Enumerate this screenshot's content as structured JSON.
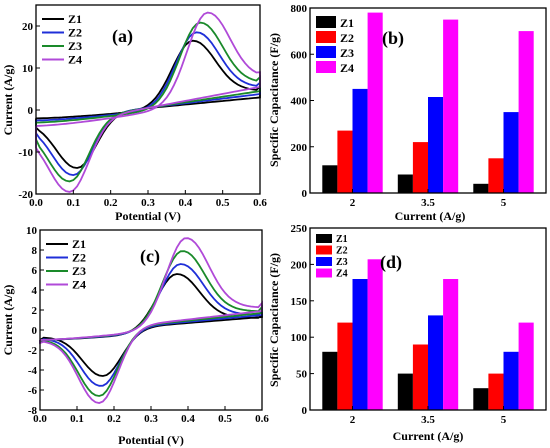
{
  "chart_data": [
    {
      "id": "a",
      "type": "line",
      "panel_label": "(a)",
      "xlabel": "Potential (V)",
      "ylabel": "Current (A/g)",
      "xlim": [
        0.0,
        0.6
      ],
      "ylim": [
        -20,
        25
      ],
      "xticks": [
        "0.0",
        "0.1",
        "0.2",
        "0.3",
        "0.4",
        "0.5",
        "0.6"
      ],
      "yticks": [
        "-20",
        "-10",
        "0",
        "10",
        "20"
      ],
      "legend": "top-left",
      "series": [
        {
          "name": "Z1",
          "color": "#000000",
          "peak_anodic": [
            0.42,
            16.5
          ],
          "peak_cathodic": [
            0.11,
            -13.8
          ],
          "start_low": -4.2,
          "start_high": -2.0,
          "end_high": 5.5,
          "end_low": 3.0
        },
        {
          "name": "Z2",
          "color": "#1f2fd8",
          "peak_anodic": [
            0.43,
            18.5
          ],
          "peak_cathodic": [
            0.1,
            -15.5
          ],
          "start_low": -5.5,
          "start_high": -2.5,
          "end_high": 6.5,
          "end_low": 3.8
        },
        {
          "name": "Z3",
          "color": "#1a8a2a",
          "peak_anodic": [
            0.44,
            20.8
          ],
          "peak_cathodic": [
            0.09,
            -17.0
          ],
          "start_low": -7.0,
          "start_high": -3.0,
          "end_high": 7.8,
          "end_low": 4.5
        },
        {
          "name": "Z4",
          "color": "#b04ad8",
          "peak_anodic": [
            0.46,
            23.2
          ],
          "peak_cathodic": [
            0.09,
            -19.5
          ],
          "start_low": -9.0,
          "start_high": -3.8,
          "end_high": 9.0,
          "end_low": 5.5
        }
      ]
    },
    {
      "id": "b",
      "type": "bar",
      "panel_label": "(b)",
      "xlabel": "Current (A/g)",
      "ylabel": "Specific Capacitance (F/g)",
      "categories": [
        "2",
        "3.5",
        "5"
      ],
      "ylim": [
        0,
        800
      ],
      "yticks": [
        "0",
        "200",
        "400",
        "600",
        "800"
      ],
      "legend": "top-left",
      "series": [
        {
          "name": "Z1",
          "color": "#000000",
          "values": [
            120,
            80,
            40
          ]
        },
        {
          "name": "Z2",
          "color": "#ff0000",
          "values": [
            270,
            220,
            150
          ]
        },
        {
          "name": "Z3",
          "color": "#0000ff",
          "values": [
            450,
            415,
            350
          ]
        },
        {
          "name": "Z4",
          "color": "#ff00ff",
          "values": [
            780,
            750,
            700
          ]
        }
      ]
    },
    {
      "id": "c",
      "type": "line",
      "panel_label": "(c)",
      "xlabel": "Potential (V)",
      "ylabel": "Current (A/g)",
      "xlim": [
        0.0,
        0.6
      ],
      "ylim": [
        -8,
        10
      ],
      "xticks": [
        "0.0",
        "0.1",
        "0.2",
        "0.3",
        "0.4",
        "0.5",
        "0.6"
      ],
      "yticks": [
        "-8",
        "-6",
        "-4",
        "-2",
        "0",
        "2",
        "4",
        "6",
        "8",
        "10"
      ],
      "legend": "top-left",
      "series": [
        {
          "name": "Z1",
          "color": "#000000",
          "peak_anodic": [
            0.37,
            5.6
          ],
          "peak_cathodic": [
            0.17,
            -4.6
          ],
          "start_low": -1.0,
          "start_high": -1.0,
          "end_high": 1.5,
          "end_low": 1.3
        },
        {
          "name": "Z2",
          "color": "#1f2fd8",
          "peak_anodic": [
            0.38,
            6.6
          ],
          "peak_cathodic": [
            0.165,
            -5.6
          ],
          "start_low": -1.1,
          "start_high": -1.0,
          "end_high": 1.9,
          "end_low": 1.5
        },
        {
          "name": "Z3",
          "color": "#1a8a2a",
          "peak_anodic": [
            0.385,
            7.9
          ],
          "peak_cathodic": [
            0.16,
            -6.6
          ],
          "start_low": -1.2,
          "start_high": -1.0,
          "end_high": 2.3,
          "end_low": 1.7
        },
        {
          "name": "Z4",
          "color": "#b04ad8",
          "peak_anodic": [
            0.395,
            9.2
          ],
          "peak_cathodic": [
            0.16,
            -7.3
          ],
          "start_low": -1.3,
          "start_high": -1.0,
          "end_high": 2.7,
          "end_low": 1.9
        }
      ]
    },
    {
      "id": "d",
      "type": "bar",
      "panel_label": "(d)",
      "xlabel": "Current (A/g)",
      "ylabel": "Specific Capacitance (F/g)",
      "categories": [
        "2",
        "3.5",
        "5"
      ],
      "ylim": [
        0,
        250
      ],
      "yticks": [
        "0",
        "50",
        "100",
        "150",
        "200",
        "250"
      ],
      "legend": "top-left",
      "series": [
        {
          "name": "Z1",
          "color": "#000000",
          "values": [
            80,
            50,
            30
          ]
        },
        {
          "name": "Z2",
          "color": "#ff0000",
          "values": [
            120,
            90,
            50
          ]
        },
        {
          "name": "Z3",
          "color": "#0000ff",
          "values": [
            180,
            130,
            80
          ]
        },
        {
          "name": "Z4",
          "color": "#ff00ff",
          "values": [
            207,
            180,
            120
          ]
        }
      ]
    }
  ]
}
